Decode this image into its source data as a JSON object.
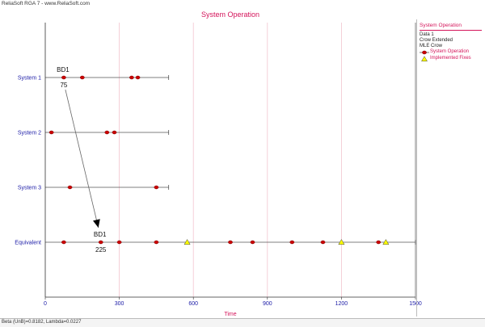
{
  "app": {
    "title_line": "ReliaSoft RGA 7 - www.ReliaSoft.com"
  },
  "status_bar": {
    "text": "Beta (UnB)=0.8182, Lambda=0.0227"
  },
  "legend": {
    "title": "System Operation",
    "lines": [
      "Data 1",
      "Crow Extended",
      "MLE Crow"
    ],
    "items": [
      {
        "label": "System Operation",
        "marker": "circle",
        "color": "#cc0000"
      },
      {
        "label": "Implemented Fixes",
        "marker": "triangle",
        "color": "#ffff00"
      }
    ]
  },
  "chart_data": {
    "type": "scatter",
    "title": "System Operation",
    "xlabel": "Time",
    "ylabel": "",
    "xlim": [
      0,
      1500
    ],
    "xticks": [
      0,
      300,
      600,
      900,
      1200,
      1500
    ],
    "colors": {
      "failure": "#cc0000",
      "fix": "#ffff00",
      "title": "#d4145a",
      "axis_text": "#1a1aa6",
      "grid": "#f2c4cf"
    },
    "categories": [
      "System 1",
      "System 2",
      "System 3",
      "Equivalent"
    ],
    "systems": [
      {
        "name": "System 1",
        "end": 500,
        "failures": [
          75,
          150,
          350,
          375
        ],
        "fixes": []
      },
      {
        "name": "System 2",
        "end": 500,
        "failures": [
          25,
          250,
          280
        ],
        "fixes": []
      },
      {
        "name": "System 3",
        "end": 500,
        "failures": [
          100,
          450
        ],
        "fixes": []
      },
      {
        "name": "Equivalent",
        "end": 1500,
        "failures": [
          75,
          225,
          300,
          450,
          750,
          840,
          1000,
          1125,
          1350
        ],
        "fixes": [
          575,
          1200,
          1380
        ]
      }
    ],
    "annotations": [
      {
        "system": "System 1",
        "x": 75,
        "label": "BD1",
        "value": "75"
      },
      {
        "system": "Equivalent",
        "x": 225,
        "label": "BD1",
        "value": "225"
      }
    ]
  }
}
